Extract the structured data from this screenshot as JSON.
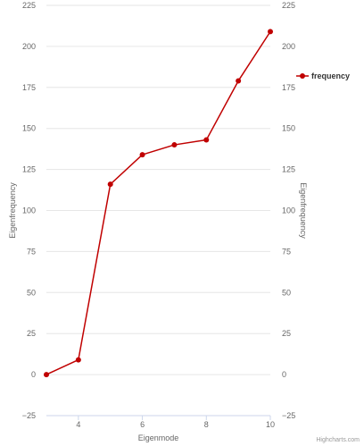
{
  "chart_data": {
    "type": "line",
    "x": [
      3,
      4,
      5,
      6,
      7,
      8,
      9,
      10
    ],
    "series": [
      {
        "name": "frequency",
        "color": "#c00000",
        "values": [
          0,
          9,
          116,
          134,
          140,
          143,
          179,
          209
        ]
      }
    ],
    "xlabel": "Eigenmode",
    "ylabel_left": "Eigenfrequency",
    "ylabel_right": "Eigenfrequency",
    "xlim": [
      3,
      10
    ],
    "ylim": [
      -25,
      225
    ],
    "xticks": [
      4,
      6,
      8,
      10
    ],
    "xtick_labels": [
      "4",
      "6",
      "8",
      "10"
    ],
    "yticks": [
      -25,
      0,
      25,
      50,
      75,
      100,
      125,
      150,
      175,
      200,
      225
    ],
    "ytick_labels": [
      "−25",
      "0",
      "25",
      "50",
      "75",
      "100",
      "125",
      "150",
      "175",
      "200",
      "225"
    ],
    "grid": true,
    "legend_position": "right",
    "credits": "Highcharts.com"
  }
}
